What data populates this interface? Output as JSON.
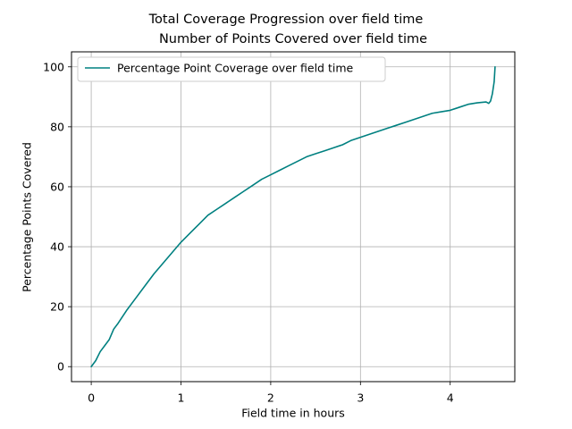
{
  "chart_data": {
    "type": "line",
    "suptitle": "Total Coverage Progression over field time",
    "title": "Number of Points Covered over field time",
    "xlabel": "Field time in hours",
    "ylabel": "Percentage Points Covered",
    "xlim": [
      -0.22,
      4.72
    ],
    "ylim": [
      -5,
      105
    ],
    "xticks": [
      0,
      1,
      2,
      3,
      4
    ],
    "yticks": [
      0,
      20,
      40,
      60,
      80,
      100
    ],
    "grid": true,
    "legend_position": "top-left",
    "series": [
      {
        "name": "Percentage Point Coverage over field time",
        "color": "#008080",
        "x": [
          0,
          0.05,
          0.1,
          0.15,
          0.2,
          0.25,
          0.3,
          0.4,
          0.5,
          0.6,
          0.7,
          0.8,
          0.9,
          1.0,
          1.1,
          1.2,
          1.3,
          1.4,
          1.5,
          1.6,
          1.7,
          1.8,
          1.9,
          2.0,
          2.1,
          2.2,
          2.3,
          2.4,
          2.5,
          2.6,
          2.7,
          2.8,
          2.9,
          3.0,
          3.1,
          3.2,
          3.3,
          3.4,
          3.5,
          3.6,
          3.7,
          3.8,
          3.9,
          4.0,
          4.1,
          4.2,
          4.3,
          4.4,
          4.43,
          4.45,
          4.47,
          4.49,
          4.5
        ],
        "y": [
          0,
          2,
          5,
          7,
          9,
          12.5,
          14.5,
          19,
          23,
          27,
          31,
          34.5,
          38,
          41.5,
          44.5,
          47.5,
          50.5,
          52.5,
          54.5,
          56.5,
          58.5,
          60.5,
          62.5,
          64,
          65.5,
          67,
          68.5,
          70,
          71,
          72,
          73,
          74,
          75.5,
          76.5,
          77.5,
          78.5,
          79.5,
          80.5,
          81.5,
          82.5,
          83.5,
          84.5,
          85,
          85.5,
          86.5,
          87.5,
          88,
          88.3,
          87.8,
          88.6,
          91,
          95,
          100
        ]
      }
    ]
  }
}
